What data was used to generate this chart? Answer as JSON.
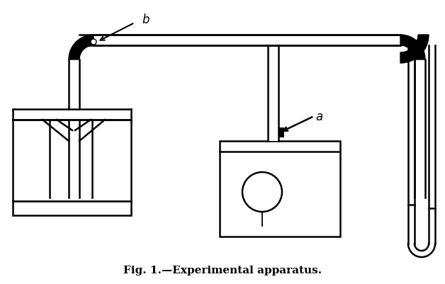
{
  "title": "Fig. 1.—Experimental apparatus.",
  "bg": "#ffffff",
  "lc": "#000000",
  "lw": 1.8,
  "fig_w": 6.28,
  "fig_h": 4.02,
  "dpi": 100
}
